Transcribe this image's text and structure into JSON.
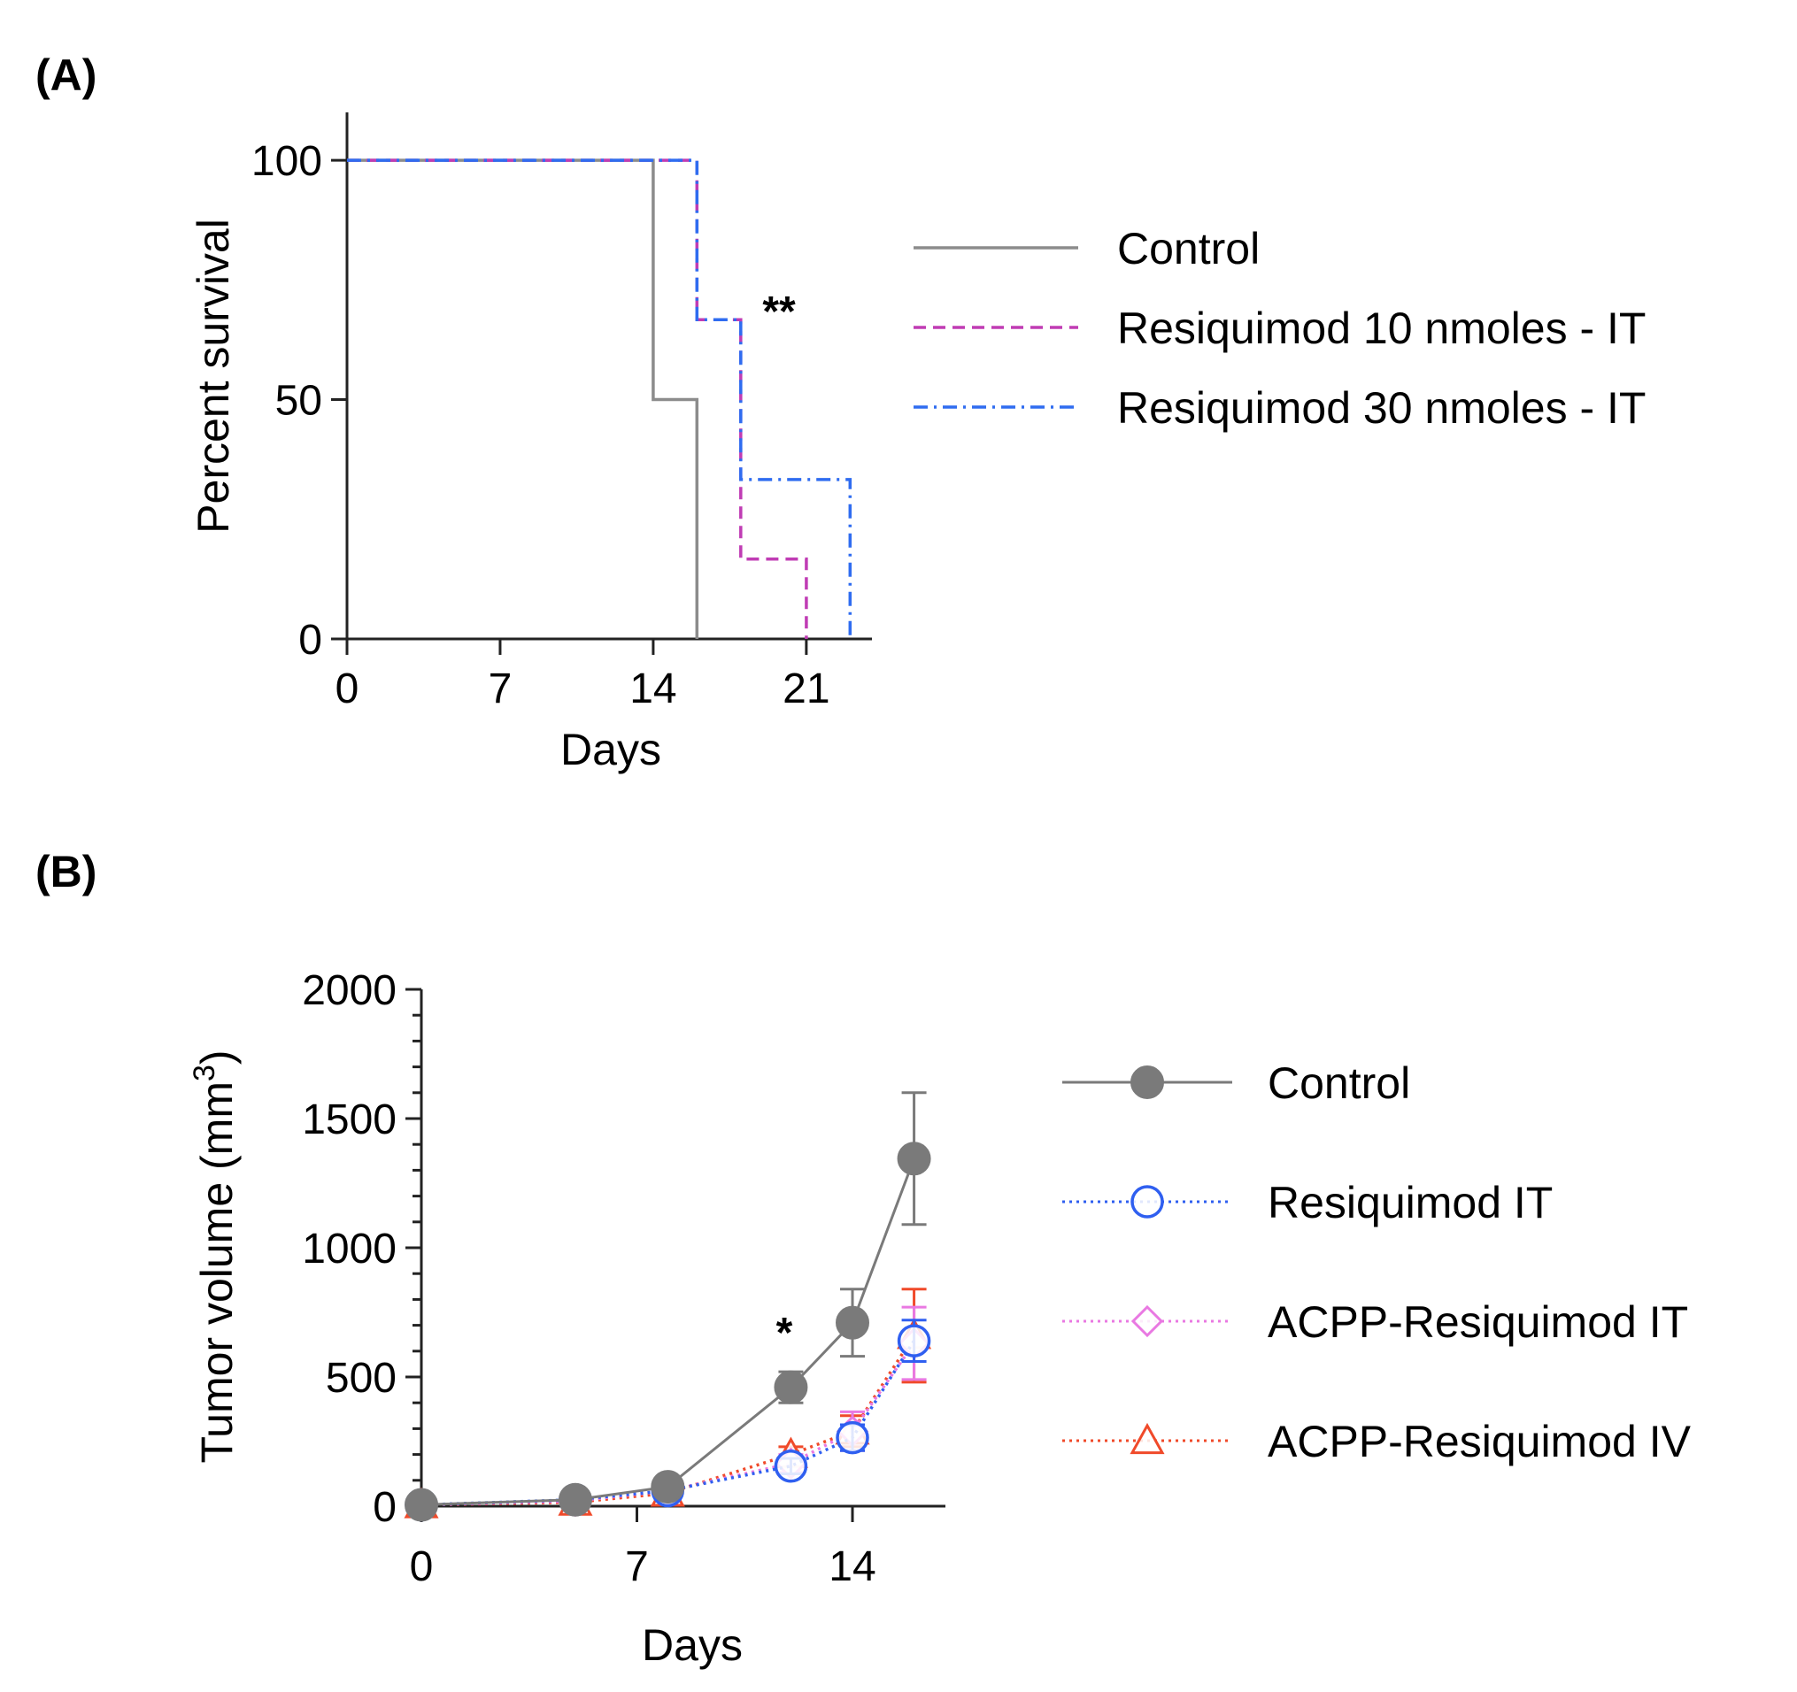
{
  "chart_data": [
    {
      "panel": "(A)",
      "type": "line",
      "subtype": "kaplan-meier step",
      "xlabel": "Days",
      "ylabel": "Percent survival",
      "xlim": [
        0,
        24
      ],
      "ylim": [
        0,
        110
      ],
      "xticks": [
        0,
        7,
        14,
        21
      ],
      "yticks": [
        0,
        50,
        100
      ],
      "legend_position": "right",
      "annotation": {
        "text": "**",
        "x": 20.5,
        "y": 68
      },
      "series": [
        {
          "name": "Control",
          "color": "#8c8c8c",
          "style": "solid",
          "x": [
            0,
            14,
            14,
            16,
            16
          ],
          "y": [
            100,
            100,
            50,
            50,
            0
          ]
        },
        {
          "name": "Resiquimod 10 nmoles - IT",
          "color": "#c03cb4",
          "style": "dashed",
          "x": [
            0,
            16,
            16,
            18,
            18,
            21,
            21
          ],
          "y": [
            100,
            100,
            66.7,
            66.7,
            16.7,
            16.7,
            0
          ]
        },
        {
          "name": "Resiquimod 30 nmoles - IT",
          "color": "#2f6cf0",
          "style": "dashdot",
          "x": [
            0,
            16,
            16,
            18,
            18,
            23,
            23
          ],
          "y": [
            100,
            100,
            66.7,
            66.7,
            33.3,
            33.3,
            0
          ]
        }
      ]
    },
    {
      "panel": "(B)",
      "type": "line",
      "subtype": "mean with error bars",
      "xlabel": "Days",
      "ylabel": "Tumor volume (mm",
      "ylabel_sup": "3",
      "ylabel_end": ")",
      "xlim": [
        0,
        17.5
      ],
      "ylim": [
        0,
        2000
      ],
      "xticks": [
        0,
        7,
        14
      ],
      "yticks": [
        0,
        500,
        1000,
        1500,
        2000
      ],
      "yminor_step": 100,
      "legend_position": "right",
      "annotation": {
        "text": "*",
        "x": 12,
        "y": 600
      },
      "series": [
        {
          "name": "Control",
          "color": "#7a7a7a",
          "marker": "filled-circle",
          "style": "solid",
          "x": [
            0,
            5,
            8,
            12,
            14,
            16
          ],
          "y": [
            5,
            25,
            75,
            460,
            710,
            1345
          ],
          "err": [
            5,
            10,
            20,
            60,
            130,
            255
          ]
        },
        {
          "name": "Resiquimod IT",
          "color": "#2f5ff0",
          "marker": "open-circle",
          "style": "dotted",
          "x": [
            0,
            5,
            8,
            12,
            14,
            16
          ],
          "y": [
            5,
            25,
            60,
            155,
            265,
            640
          ],
          "err": [
            5,
            10,
            15,
            30,
            50,
            80
          ]
        },
        {
          "name": "ACPP-Resiquimod IT",
          "color": "#e979e2",
          "marker": "open-diamond",
          "style": "dotted",
          "x": [
            0,
            5,
            8,
            12,
            14,
            16
          ],
          "y": [
            5,
            20,
            60,
            165,
            290,
            630
          ],
          "err": [
            5,
            10,
            15,
            35,
            75,
            140
          ]
        },
        {
          "name": "ACPP-Resiquimod IV",
          "color": "#f04a2a",
          "marker": "open-triangle",
          "style": "dotted",
          "x": [
            0,
            5,
            8,
            12,
            14,
            16
          ],
          "y": [
            5,
            15,
            50,
            200,
            290,
            660
          ],
          "err": [
            5,
            10,
            15,
            30,
            60,
            180
          ]
        }
      ]
    }
  ]
}
